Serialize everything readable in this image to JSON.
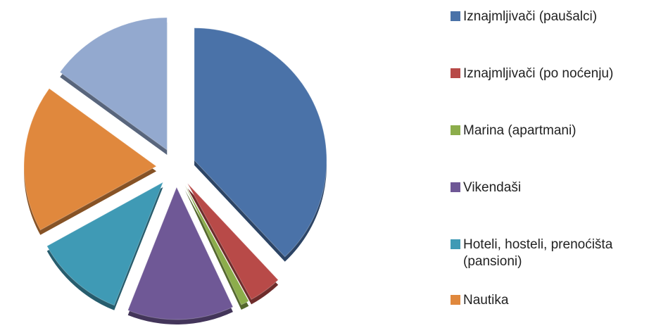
{
  "chart_data": {
    "type": "pie",
    "categories": [
      "Iznajmljivači (paušalci)",
      "Iznajmljivači (po noćenju)",
      "Marina (apartmani)",
      "Vikendaši",
      "Hoteli, hosteli, prenoćišta (pansioni)",
      "Nautika",
      null
    ],
    "values": [
      38,
      4,
      1,
      13,
      11,
      18,
      15
    ],
    "colors": [
      "#4a72a8",
      "#b84a48",
      "#8cad4b",
      "#6f5896",
      "#3f9ab5",
      "#e0883d",
      "#93a9cf"
    ],
    "legend": "right"
  }
}
